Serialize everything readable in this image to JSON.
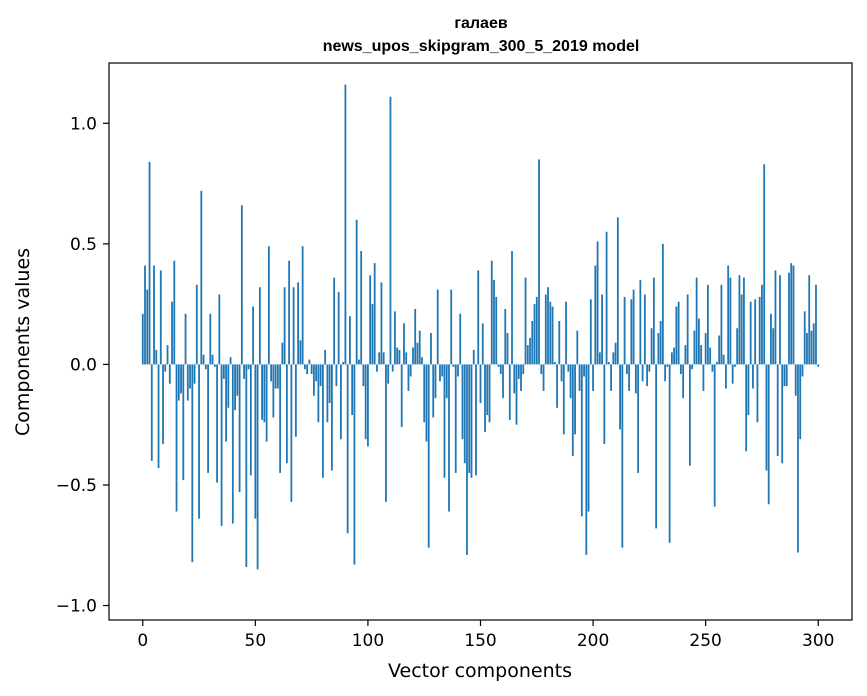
{
  "chart_data": {
    "type": "bar",
    "title": "галаев",
    "subtitle": "news_upos_skipgram_300_5_2019 model",
    "xlabel": "Vector components",
    "ylabel": "Components values",
    "xlim": [
      -15,
      315
    ],
    "ylim": [
      -1.06,
      1.25
    ],
    "xticks": [
      0,
      50,
      100,
      150,
      200,
      250,
      300
    ],
    "xtick_labels": [
      "0",
      "50",
      "100",
      "150",
      "200",
      "250",
      "300"
    ],
    "yticks": [
      -1.0,
      -0.5,
      0.0,
      0.5,
      1.0
    ],
    "ytick_labels": [
      "−1.0",
      "−0.5",
      "0.0",
      "0.5",
      "1.0"
    ],
    "bar_color": "#1f77b4",
    "grid": false,
    "legend": "none",
    "values": [
      0.21,
      0.41,
      0.31,
      0.84,
      -0.4,
      0.41,
      0.06,
      -0.43,
      0.39,
      -0.33,
      -0.03,
      0.08,
      -0.08,
      0.26,
      0.43,
      -0.61,
      -0.15,
      -0.12,
      -0.48,
      0.21,
      -0.15,
      -0.1,
      -0.82,
      -0.08,
      0.33,
      -0.64,
      0.72,
      0.04,
      -0.02,
      -0.45,
      0.21,
      0.04,
      -0.01,
      -0.49,
      0.29,
      -0.67,
      -0.06,
      -0.32,
      -0.18,
      0.03,
      -0.66,
      -0.19,
      -0.13,
      -0.53,
      0.66,
      -0.06,
      -0.84,
      -0.02,
      -0.46,
      0.24,
      -0.64,
      -0.85,
      0.32,
      -0.23,
      -0.24,
      -0.32,
      0.49,
      -0.07,
      -0.22,
      -0.1,
      -0.1,
      -0.45,
      0.09,
      0.32,
      -0.41,
      0.43,
      -0.57,
      0.32,
      -0.3,
      0.34,
      0.1,
      0.49,
      -0.02,
      -0.04,
      0.02,
      -0.04,
      -0.13,
      -0.07,
      -0.24,
      -0.09,
      -0.47,
      0.06,
      -0.24,
      -0.16,
      -0.44,
      0.36,
      -0.09,
      0.3,
      -0.31,
      0.01,
      1.16,
      -0.7,
      0.2,
      -0.21,
      -0.83,
      0.6,
      0.02,
      0.47,
      -0.09,
      -0.31,
      -0.34,
      0.37,
      0.25,
      0.42,
      -0.03,
      0.05,
      0.34,
      0.05,
      -0.57,
      -0.08,
      1.11,
      -0.03,
      0.22,
      0.07,
      0.06,
      -0.26,
      0.17,
      0.05,
      -0.11,
      -0.05,
      0.07,
      0.23,
      0.09,
      0.14,
      0.03,
      -0.24,
      -0.32,
      -0.76,
      0.13,
      -0.22,
      -0.14,
      0.31,
      -0.07,
      -0.05,
      -0.47,
      -0.14,
      -0.61,
      0.31,
      -0.01,
      -0.45,
      -0.05,
      0.21,
      -0.31,
      -0.41,
      -0.79,
      -0.45,
      -0.47,
      0.06,
      -0.46,
      0.39,
      -0.16,
      0.17,
      -0.28,
      -0.21,
      -0.24,
      0.43,
      0.35,
      0.28,
      -0.01,
      -0.04,
      -0.14,
      0.23,
      0.13,
      -0.23,
      0.47,
      -0.12,
      -0.25,
      -0.06,
      -0.11,
      -0.04,
      0.36,
      0.08,
      0.11,
      0.18,
      0.25,
      0.28,
      0.85,
      -0.04,
      -0.11,
      0.29,
      0.32,
      0.26,
      0.24,
      0.01,
      -0.18,
      0.18,
      -0.07,
      -0.29,
      0.26,
      -0.03,
      -0.14,
      -0.38,
      -0.29,
      0.14,
      -0.11,
      -0.63,
      -0.05,
      -0.79,
      -0.61,
      0.27,
      -0.11,
      0.41,
      0.51,
      0.05,
      0.29,
      -0.33,
      0.55,
      0.01,
      -0.11,
      0.05,
      0.09,
      0.61,
      -0.27,
      -0.76,
      0.28,
      -0.04,
      -0.11,
      0.27,
      0.31,
      -0.12,
      -0.45,
      0.35,
      -0.07,
      0.29,
      -0.09,
      -0.03,
      0.15,
      0.36,
      -0.68,
      0.13,
      0.18,
      0.5,
      -0.07,
      -0.01,
      -0.74,
      0.05,
      0.07,
      0.24,
      0.26,
      -0.04,
      -0.14,
      0.08,
      0.29,
      -0.42,
      -0.02,
      0.14,
      0.36,
      0.19,
      0.08,
      -0.11,
      0.13,
      0.33,
      0.07,
      -0.03,
      -0.59,
      0.01,
      0.12,
      0.33,
      0.04,
      -0.1,
      0.41,
      0.36,
      -0.08,
      -0.01,
      0.15,
      0.37,
      0.29,
      0.36,
      -0.36,
      -0.21,
      0.26,
      -0.1,
      0.27,
      -0.24,
      0.28,
      0.33,
      0.83,
      -0.44,
      -0.58,
      0.21,
      0.15,
      0.39,
      -0.38,
      0.37,
      -0.41,
      -0.09,
      -0.09,
      0.38,
      0.42,
      0.41,
      -0.13,
      -0.78,
      -0.31,
      -0.05,
      0.22,
      0.13,
      0.37,
      0.14,
      0.17,
      0.33,
      -0.01
    ]
  }
}
